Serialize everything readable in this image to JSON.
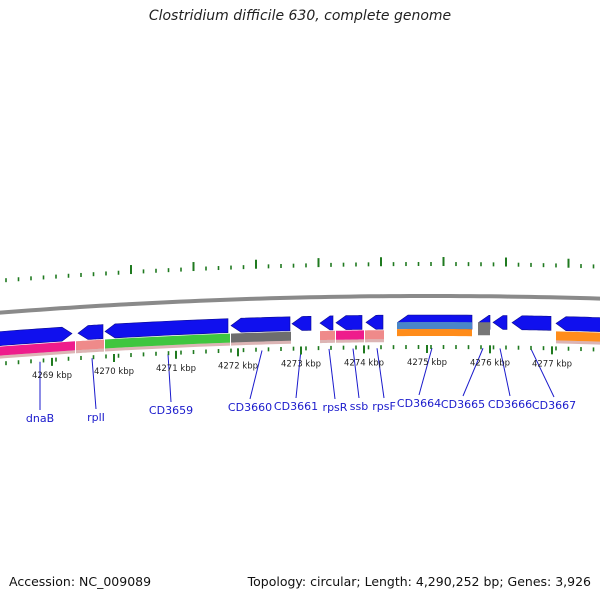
{
  "title": "Clostridium difficile 630, complete genome",
  "footer": {
    "accession": "Accession: NC_009089",
    "summary": "Topology: circular; Length: 4,290,252 bp; Genes: 3,926"
  },
  "colors": {
    "backbone": "#8a8a8a",
    "tick": "#1f7a1f",
    "gene_blue": "#1010ee",
    "label_blue": "#1a1acc",
    "scale_text": "#222222"
  },
  "ticks": [
    {
      "label": "4269 kbp"
    },
    {
      "label": "4270 kbp"
    },
    {
      "label": "4271 kbp"
    },
    {
      "label": "4272 kbp"
    },
    {
      "label": "4273 kbp"
    },
    {
      "label": "4274 kbp"
    },
    {
      "label": "4275 kbp"
    },
    {
      "label": "4276 kbp"
    },
    {
      "label": "4277 kbp"
    }
  ],
  "genes": [
    {
      "name": "dnaB",
      "strand": "+",
      "color": "#ee1c8c"
    },
    {
      "name": "rplI",
      "strand": "+",
      "color": "#ef8a8a"
    },
    {
      "name": "CD3659",
      "strand": "+",
      "color": "#3fc63f"
    },
    {
      "name": "CD3660",
      "strand": "+",
      "color": "#6e6e6e"
    },
    {
      "name": "CD3661",
      "strand": "-",
      "color": "#1010ee"
    },
    {
      "name": "rpsR",
      "strand": "+",
      "color": "#ef8a8a"
    },
    {
      "name": "ssb",
      "strand": "+",
      "color": "#ee1c8c"
    },
    {
      "name": "rpsF",
      "strand": "+",
      "color": "#ef8a8a"
    },
    {
      "name": "CD3664",
      "strand": "+",
      "color": "#4a86c8"
    },
    {
      "name": "CD3665",
      "strand": "-",
      "color": "#1010ee"
    },
    {
      "name": "CD3666",
      "strand": "-",
      "color": "#1010ee"
    },
    {
      "name": "CD3667",
      "strand": "+",
      "color": "#ff8c1a"
    }
  ]
}
